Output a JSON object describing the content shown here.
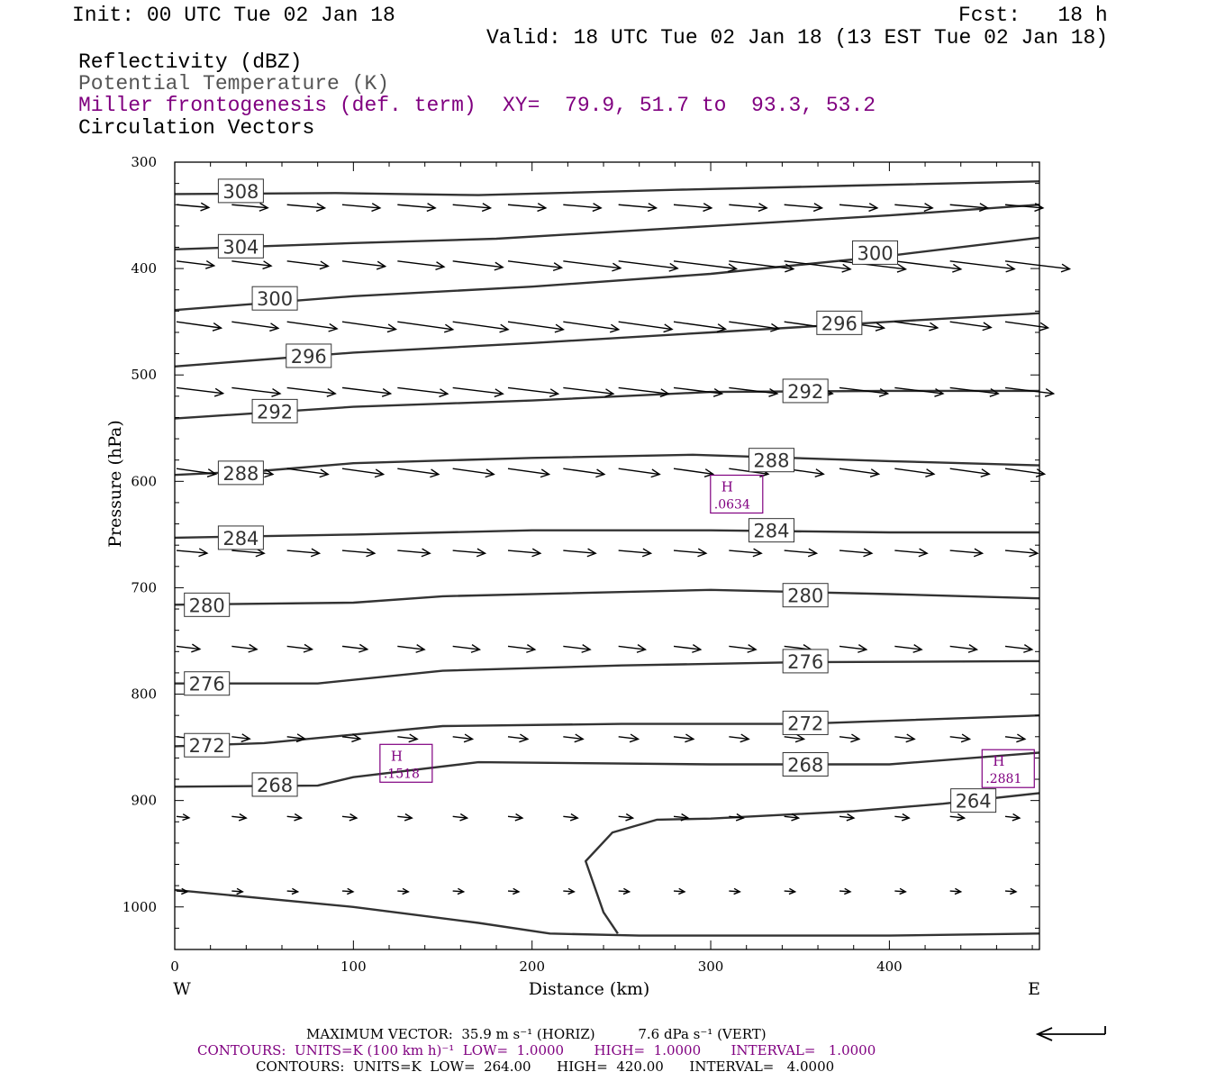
{
  "header": {
    "init": "Init: 00 UTC Tue 02 Jan 18",
    "fcst": "Fcst:   18 h",
    "valid": "Valid: 18 UTC Tue 02 Jan 18 (13 EST Tue 02 Jan 18)",
    "legend1": "Reflectivity (dBZ)",
    "legend2": "Potential Temperature (K)",
    "legend3": "Miller frontogenesis (def. term)",
    "xy": "XY=  79.9, 51.7 to  93.3, 53.2",
    "legend4": "Circulation Vectors"
  },
  "colors": {
    "frontogenesis": "#800080",
    "theta": "#555555",
    "axes": "#000000"
  },
  "footer": {
    "max_vector": "MAXIMUM VECTOR:  35.9 m s⁻¹ (HORIZ)          7.6 dPa s⁻¹ (VERT)",
    "contours_fronto": "CONTOURS:  UNITS=K (100 km h)⁻¹  LOW=  1.0000       HIGH=  1.0000       INTERVAL=   1.0000",
    "contours_theta": "CONTOURS:  UNITS=K  LOW=  264.00      HIGH=  420.00      INTERVAL=   4.0000"
  },
  "chart_data": {
    "type": "line",
    "xlabel": "Distance (km)",
    "ylabel": "Pressure (hPa)",
    "xlim": [
      0,
      484
    ],
    "ylim": [
      1040,
      300
    ],
    "xticks": [
      0,
      100,
      200,
      300,
      400
    ],
    "yticks": [
      300,
      400,
      500,
      600,
      700,
      800,
      900,
      1000
    ],
    "x_end_labels": {
      "left": "W",
      "right": "E"
    },
    "grid": false,
    "theta_contours": [
      {
        "value": 308,
        "points": [
          [
            0,
            330
          ],
          [
            90,
            329
          ],
          [
            170,
            331
          ],
          [
            280,
            326
          ],
          [
            380,
            322
          ],
          [
            484,
            318
          ]
        ],
        "label": "308",
        "label_at": [
          37,
          327
        ]
      },
      {
        "value": 304,
        "points": [
          [
            0,
            382
          ],
          [
            100,
            376
          ],
          [
            180,
            372
          ],
          [
            300,
            360
          ],
          [
            400,
            350
          ],
          [
            484,
            340
          ]
        ],
        "label": "304",
        "label_at": [
          37,
          379
        ]
      },
      {
        "value": 300,
        "points": [
          [
            0,
            439
          ],
          [
            100,
            426
          ],
          [
            200,
            417
          ],
          [
            300,
            405
          ],
          [
            400,
            388
          ],
          [
            484,
            371
          ]
        ],
        "label": "300",
        "label_at": [
          56,
          428
        ]
      },
      {
        "value": 300,
        "points": [],
        "label": "300",
        "label_at": [
          392,
          385
        ]
      },
      {
        "value": 296,
        "points": [
          [
            0,
            492
          ],
          [
            100,
            479
          ],
          [
            200,
            470
          ],
          [
            300,
            460
          ],
          [
            400,
            450
          ],
          [
            484,
            442
          ]
        ],
        "label": "296",
        "label_at": [
          75,
          482
        ]
      },
      {
        "value": 296,
        "points": [],
        "label": "296",
        "label_at": [
          372,
          451
        ]
      },
      {
        "value": 292,
        "points": [
          [
            0,
            541
          ],
          [
            100,
            530
          ],
          [
            200,
            524
          ],
          [
            300,
            516
          ],
          [
            400,
            515
          ],
          [
            484,
            515
          ]
        ],
        "label": "292",
        "label_at": [
          56,
          534
        ]
      },
      {
        "value": 292,
        "points": [],
        "label": "292",
        "label_at": [
          353,
          515
        ]
      },
      {
        "value": 288,
        "points": [
          [
            0,
            594
          ],
          [
            50,
            590
          ],
          [
            100,
            583
          ],
          [
            200,
            578
          ],
          [
            290,
            575
          ],
          [
            400,
            581
          ],
          [
            484,
            585
          ]
        ],
        "label": "288",
        "label_at": [
          37,
          592
        ]
      },
      {
        "value": 288,
        "points": [],
        "label": "288",
        "label_at": [
          334,
          580
        ]
      },
      {
        "value": 284,
        "points": [
          [
            0,
            653
          ],
          [
            100,
            650
          ],
          [
            200,
            646
          ],
          [
            300,
            646
          ],
          [
            400,
            648
          ],
          [
            484,
            648
          ]
        ],
        "label": "284",
        "label_at": [
          37,
          653
        ]
      },
      {
        "value": 284,
        "points": [],
        "label": "284",
        "label_at": [
          334,
          646
        ]
      },
      {
        "value": 280,
        "points": [
          [
            0,
            716
          ],
          [
            100,
            714
          ],
          [
            150,
            708
          ],
          [
            300,
            702
          ],
          [
            400,
            706
          ],
          [
            484,
            710
          ]
        ],
        "label": "280",
        "label_at": [
          18,
          716
        ]
      },
      {
        "value": 280,
        "points": [],
        "label": "280",
        "label_at": [
          353,
          707
        ]
      },
      {
        "value": 276,
        "points": [
          [
            0,
            790
          ],
          [
            80,
            790
          ],
          [
            150,
            778
          ],
          [
            250,
            773
          ],
          [
            350,
            770
          ],
          [
            484,
            769
          ]
        ],
        "label": "276",
        "label_at": [
          18,
          790
        ]
      },
      {
        "value": 276,
        "points": [],
        "label": "276",
        "label_at": [
          353,
          769
        ]
      },
      {
        "value": 272,
        "points": [
          [
            0,
            849
          ],
          [
            50,
            846
          ],
          [
            150,
            830
          ],
          [
            250,
            828
          ],
          [
            350,
            828
          ],
          [
            484,
            820
          ]
        ],
        "label": "272",
        "label_at": [
          18,
          848
        ]
      },
      {
        "value": 272,
        "points": [],
        "label": "272",
        "label_at": [
          353,
          827
        ]
      },
      {
        "value": 268,
        "points": [
          [
            0,
            887
          ],
          [
            80,
            886
          ],
          [
            100,
            878
          ],
          [
            170,
            864
          ],
          [
            300,
            866
          ],
          [
            400,
            866
          ],
          [
            484,
            855
          ]
        ],
        "label": "268",
        "label_at": [
          56,
          885
        ]
      },
      {
        "value": 268,
        "points": [],
        "label": "268",
        "label_at": [
          353,
          866
        ]
      },
      {
        "value": 264,
        "points": [
          [
            484,
            893
          ],
          [
            430,
            903
          ],
          [
            380,
            910
          ],
          [
            300,
            917
          ],
          [
            270,
            918
          ],
          [
            245,
            930
          ],
          [
            230,
            957
          ],
          [
            240,
            1005
          ],
          [
            248,
            1025
          ]
        ],
        "label": "264",
        "label_at": [
          447,
          900
        ]
      },
      {
        "value": 264,
        "points": [
          [
            0,
            984
          ],
          [
            100,
            1000
          ],
          [
            170,
            1015
          ],
          [
            210,
            1025
          ],
          [
            260,
            1027
          ],
          [
            400,
            1027
          ],
          [
            484,
            1025
          ]
        ],
        "label": "",
        "label_at": []
      }
    ],
    "frontogenesis_highs": [
      {
        "label": "H",
        "value": ".0634",
        "at": [
          315,
          612
        ]
      },
      {
        "label": "H",
        "value": ".1518",
        "at": [
          130,
          865
        ]
      },
      {
        "label": "H",
        "value": ".2881",
        "at": [
          467,
          870
        ]
      }
    ],
    "circulation_vectors": [
      {
        "p": 340,
        "dir": 5,
        "len": [
          36,
          40,
          42,
          42,
          42,
          42,
          42,
          42,
          42,
          42,
          42,
          42,
          42,
          42,
          42,
          42
        ]
      },
      {
        "p": 393,
        "dir": 7,
        "len": [
          42,
          44,
          46,
          48,
          52,
          56,
          60,
          64,
          66,
          70,
          72,
          74,
          74,
          74,
          72,
          72
        ]
      },
      {
        "p": 450,
        "dir": 8,
        "len": [
          50,
          52,
          56,
          60,
          62,
          62,
          62,
          62,
          60,
          58,
          56,
          52,
          50,
          48,
          46,
          48
        ]
      },
      {
        "p": 512,
        "dir": 7,
        "len": [
          52,
          54,
          54,
          54,
          56,
          56,
          56,
          56,
          56,
          54,
          54,
          54,
          54,
          54,
          54,
          54
        ]
      },
      {
        "p": 588,
        "dir": 8,
        "len": [
          44,
          46,
          46,
          46,
          46,
          46,
          46,
          46,
          46,
          44,
          44,
          44,
          44,
          44,
          44,
          44
        ]
      },
      {
        "p": 665,
        "dir": 5,
        "len": [
          34,
          36,
          36,
          36,
          36,
          36,
          36,
          36,
          36,
          36,
          36,
          36,
          36,
          36,
          36,
          36
        ]
      },
      {
        "p": 755,
        "dir": 7,
        "len": [
          26,
          28,
          28,
          28,
          30,
          30,
          30,
          30,
          30,
          30,
          30,
          30,
          30,
          30,
          30,
          30
        ]
      },
      {
        "p": 840,
        "dir": 7,
        "len": [
          18,
          20,
          20,
          20,
          22,
          22,
          22,
          22,
          22,
          22,
          22,
          22,
          22,
          22,
          22,
          22
        ]
      },
      {
        "p": 915,
        "dir": 6,
        "len": [
          14,
          16,
          16,
          16,
          16,
          16,
          16,
          16,
          16,
          16,
          16,
          16,
          16,
          16,
          16,
          16
        ]
      },
      {
        "p": 985,
        "dir": 4,
        "len": [
          12,
          12,
          12,
          12,
          12,
          12,
          12,
          12,
          12,
          12,
          12,
          12,
          12,
          12,
          12,
          12
        ]
      }
    ]
  }
}
